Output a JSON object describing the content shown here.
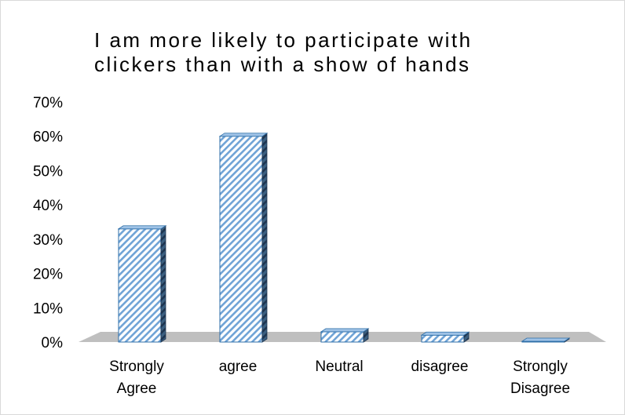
{
  "chart_data": {
    "type": "bar",
    "title": "I am more likely to participate with\nclickers than with a show of hands",
    "categories": [
      "Strongly Agree",
      "agree",
      "Neutral",
      "disagree",
      "Strongly Disagree"
    ],
    "values": [
      33,
      60,
      3,
      2,
      0
    ],
    "ylim": [
      0,
      70
    ],
    "yticks": [
      "0%",
      "10%",
      "20%",
      "30%",
      "40%",
      "50%",
      "60%",
      "70%"
    ],
    "grid": false,
    "legend": "none",
    "bar_color": "#dbe9f6",
    "bar_edge_color": "#2f6fa8",
    "floor_color": "#bfbfbf"
  }
}
